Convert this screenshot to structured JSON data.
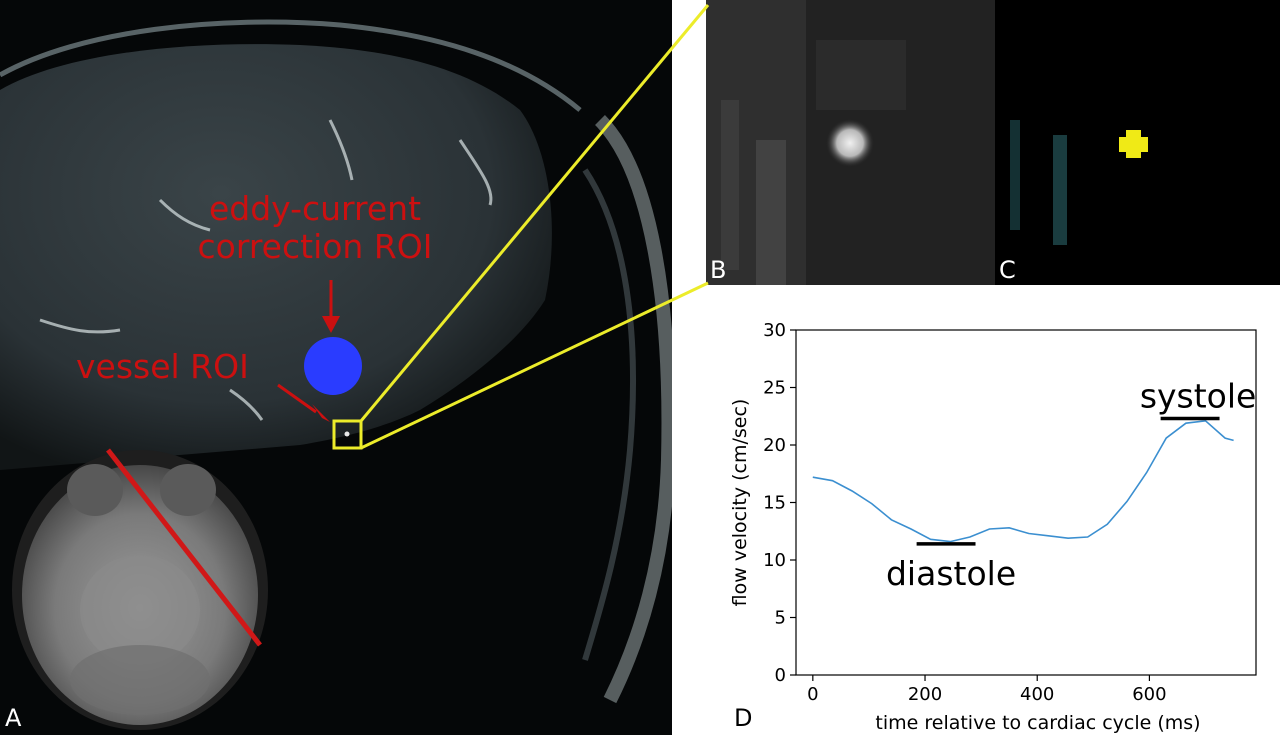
{
  "panels": {
    "a": {
      "label": "A"
    },
    "b": {
      "label": "B"
    },
    "c": {
      "label": "C"
    },
    "d": {
      "label": "D"
    }
  },
  "annotations": {
    "eddy_roi": "eddy-current\ncorrection ROI",
    "vessel_roi": "vessel ROI"
  },
  "colors": {
    "annotation_red": "#cc1010",
    "roi_blue": "#2a3cff",
    "highlight_yellow": "#ecec2a",
    "line_blue": "#3b8fd0"
  },
  "chart_data": {
    "type": "line",
    "title": "",
    "xlabel": "time relative to cardiac cycle (ms)",
    "ylabel": "flow velocity (cm/sec)",
    "xlim": [
      -30,
      790
    ],
    "ylim": [
      0,
      30
    ],
    "xticks": [
      0,
      200,
      400,
      600
    ],
    "yticks": [
      0,
      5,
      10,
      15,
      20,
      25,
      30
    ],
    "grid": false,
    "series": [
      {
        "x": [
          0,
          35,
          70,
          105,
          140,
          175,
          210,
          245,
          280,
          315,
          350,
          385,
          420,
          455,
          490,
          525,
          560,
          595,
          630,
          665,
          700,
          735,
          750
        ],
        "y": [
          17.2,
          16.9,
          16.0,
          14.9,
          13.5,
          12.7,
          11.8,
          11.6,
          12.0,
          12.7,
          12.8,
          12.3,
          12.1,
          11.9,
          12.0,
          13.1,
          15.1,
          17.6,
          20.6,
          21.9,
          22.1,
          20.6,
          20.4
        ]
      }
    ],
    "annotations": [
      {
        "text": "diastole",
        "x_start": 185,
        "x_end": 290,
        "y": 11.4
      },
      {
        "text": "systole",
        "x_start": 620,
        "x_end": 725,
        "y": 22.3
      }
    ]
  }
}
